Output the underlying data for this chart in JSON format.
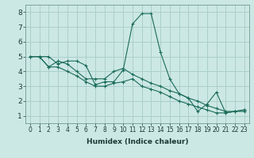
{
  "xlabel": "Humidex (Indice chaleur)",
  "ylabel": "",
  "bg_color": "#cce8e4",
  "grid_color": "#aacfcb",
  "line_color": "#1a6b5a",
  "xlim": [
    -0.5,
    23.5
  ],
  "ylim": [
    0.5,
    8.5
  ],
  "yticks": [
    1,
    2,
    3,
    4,
    5,
    6,
    7,
    8
  ],
  "xticks": [
    0,
    1,
    2,
    3,
    4,
    5,
    6,
    7,
    8,
    9,
    10,
    11,
    12,
    13,
    14,
    15,
    16,
    17,
    18,
    19,
    20,
    21,
    22,
    23
  ],
  "series": [
    [
      5.0,
      5.0,
      5.0,
      4.5,
      4.7,
      4.7,
      4.4,
      3.1,
      3.3,
      3.3,
      4.1,
      7.2,
      7.9,
      7.9,
      5.3,
      3.5,
      2.5,
      2.2,
      1.3,
      1.8,
      2.6,
      1.2,
      1.3,
      1.3
    ],
    [
      5.0,
      5.0,
      4.3,
      4.7,
      4.5,
      4.0,
      3.5,
      3.5,
      3.5,
      4.0,
      4.2,
      3.8,
      3.5,
      3.2,
      3.0,
      2.7,
      2.5,
      2.2,
      2.0,
      1.7,
      1.5,
      1.3,
      1.3,
      1.4
    ],
    [
      5.0,
      5.0,
      4.3,
      4.3,
      4.0,
      3.7,
      3.3,
      3.0,
      3.0,
      3.2,
      3.3,
      3.5,
      3.0,
      2.8,
      2.6,
      2.3,
      2.0,
      1.8,
      1.6,
      1.4,
      1.2,
      1.2,
      1.3,
      1.4
    ]
  ],
  "xlabel_fontsize": 6.5,
  "tick_fontsize": 5.5,
  "ytick_fontsize": 6.5
}
